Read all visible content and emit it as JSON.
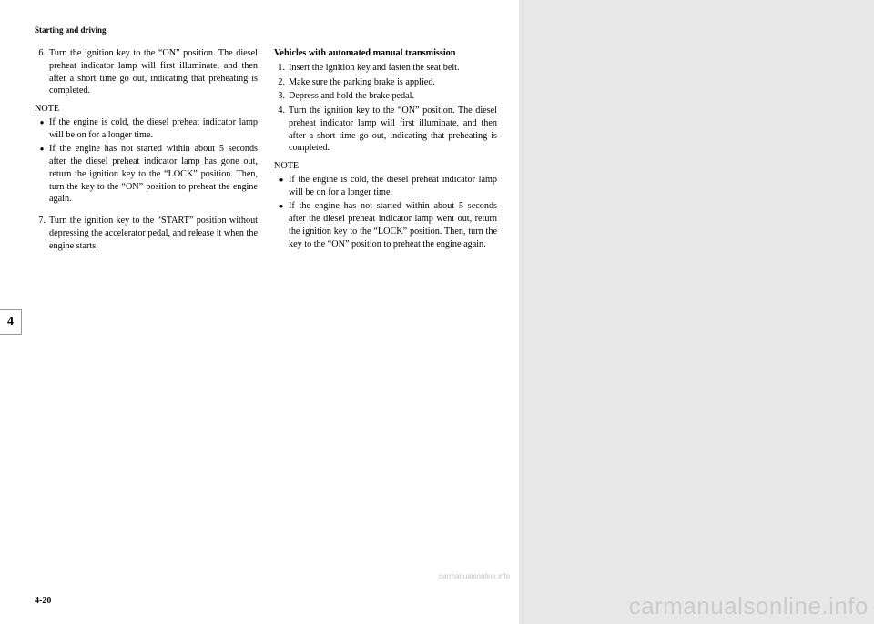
{
  "header": "Starting and driving",
  "chapter_tab": "4",
  "page_number": "4-20",
  "watermark_small": "carmanualsonline.info",
  "watermark_large": "carmanualsonline.info",
  "left_col": {
    "items_a": [
      {
        "num": "6.",
        "text": "Turn the ignition key to the “ON” position. The diesel preheat indicator lamp will first illuminate, and then after a short time go out, indicating that preheating is completed."
      }
    ],
    "note_label": "NOTE",
    "bullets": [
      "If the engine is cold, the diesel preheat indicator lamp will be on for a longer time.",
      "If the engine has not started within about 5 seconds after the diesel preheat indicator lamp has gone out, return the ignition key to the “LOCK” position. Then, turn the key to the “ON” position to preheat the engine again."
    ],
    "items_b": [
      {
        "num": "7.",
        "text": "Turn the ignition key to the “START” position without depressing the accelerator pedal, and release it when the engine starts."
      }
    ]
  },
  "right_col": {
    "subhead": "Vehicles with automated manual transmission",
    "items": [
      {
        "num": "1.",
        "text": "Insert the ignition key and fasten the seat belt."
      },
      {
        "num": "2.",
        "text": "Make sure the parking brake is applied."
      },
      {
        "num": "3.",
        "text": "Depress and hold the brake pedal."
      },
      {
        "num": "4.",
        "text": "Turn the ignition key to the “ON” position. The diesel preheat indicator lamp will first illuminate, and then after a short time go out, indicating that preheating is completed."
      }
    ],
    "note_label": "NOTE",
    "bullets": [
      "If the engine is cold, the diesel preheat indicator lamp will be on for a longer time.",
      "If the engine has not  started within about 5 seconds after the diesel preheat indicator lamp went out, return the ignition key to the “LOCK” position. Then, turn the key to the “ON” position to preheat the engine again."
    ]
  }
}
